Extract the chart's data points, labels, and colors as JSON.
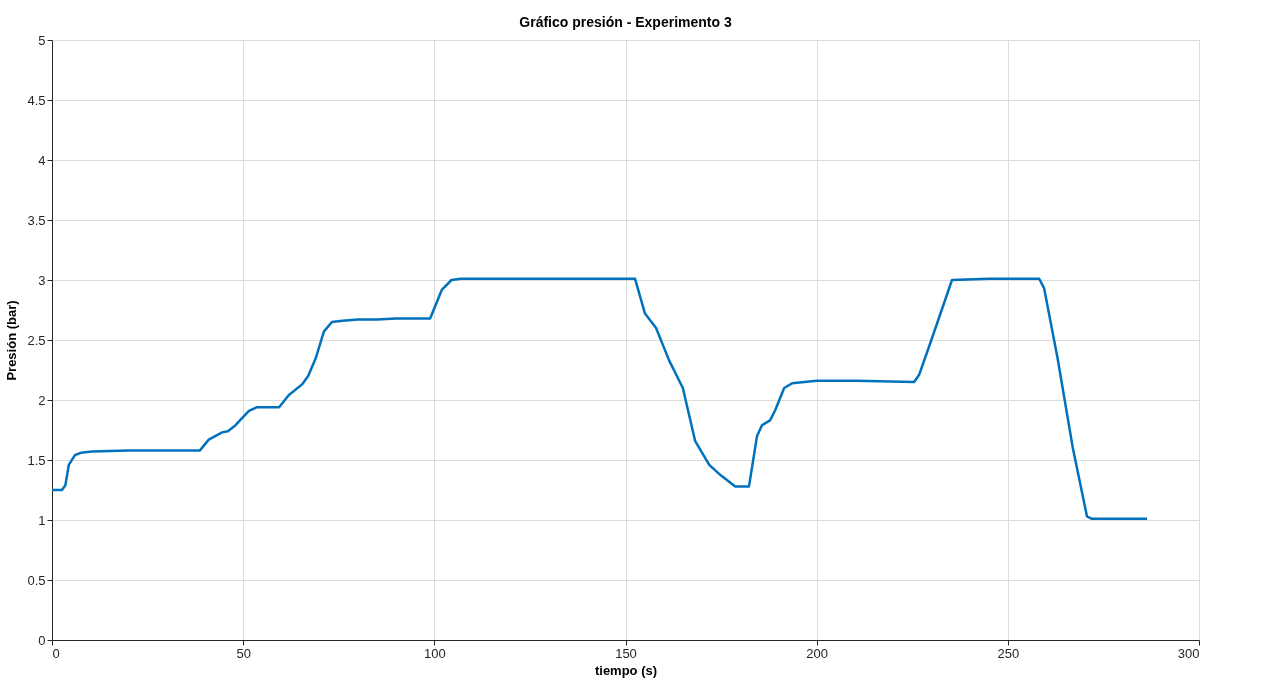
{
  "chart_data": {
    "type": "line",
    "title": "Gráfico presión - Experimento 3",
    "xlabel": "tiempo (s)",
    "ylabel": "Presión (bar)",
    "series": [
      {
        "color": "#0072bd",
        "x": [
          0,
          2.6,
          3.5,
          4.4,
          6,
          7.5,
          10.5,
          20,
          30,
          38.7,
          41,
          44.5,
          46,
          48,
          51.5,
          53.6,
          59.4,
          61.9,
          65.4,
          67,
          69,
          71.1,
          73.2,
          76,
          80,
          85,
          90,
          95,
          98.9,
          102,
          104.5,
          107,
          120,
          140,
          152.5,
          155.1,
          158,
          161.4,
          165,
          168.2,
          171.9,
          175,
          178.7,
          182.3,
          184.4,
          185.7,
          187.8,
          189.1,
          191.5,
          193.6,
          200,
          210,
          225.5,
          226.8,
          230,
          235.4,
          245,
          258.2,
          259.5,
          263,
          267,
          270.7,
          272,
          280,
          286.4
        ],
        "values": [
          1.25,
          1.25,
          1.29,
          1.46,
          1.54,
          1.56,
          1.57,
          1.58,
          1.58,
          1.58,
          1.67,
          1.73,
          1.74,
          1.79,
          1.91,
          1.94,
          1.94,
          2.04,
          2.13,
          2.2,
          2.35,
          2.57,
          2.65,
          2.66,
          2.67,
          2.67,
          2.68,
          2.68,
          2.68,
          2.92,
          3.0,
          3.01,
          3.01,
          3.01,
          3.01,
          2.72,
          2.6,
          2.33,
          2.1,
          1.66,
          1.46,
          1.37,
          1.28,
          1.28,
          1.7,
          1.79,
          1.83,
          1.91,
          2.1,
          2.14,
          2.16,
          2.16,
          2.15,
          2.21,
          2.5,
          3.0,
          3.01,
          3.01,
          2.93,
          2.35,
          1.6,
          1.03,
          1.01,
          1.01,
          1.01
        ]
      }
    ],
    "xlim": [
      0,
      300
    ],
    "xticks": [
      0,
      50,
      100,
      150,
      200,
      250,
      300
    ],
    "ylim": [
      0,
      5
    ],
    "yticks": [
      0,
      0.5,
      1,
      1.5,
      2,
      2.5,
      3,
      3.5,
      4,
      4.5,
      5
    ],
    "grid": true,
    "line_style": "solid",
    "marker": "none"
  }
}
